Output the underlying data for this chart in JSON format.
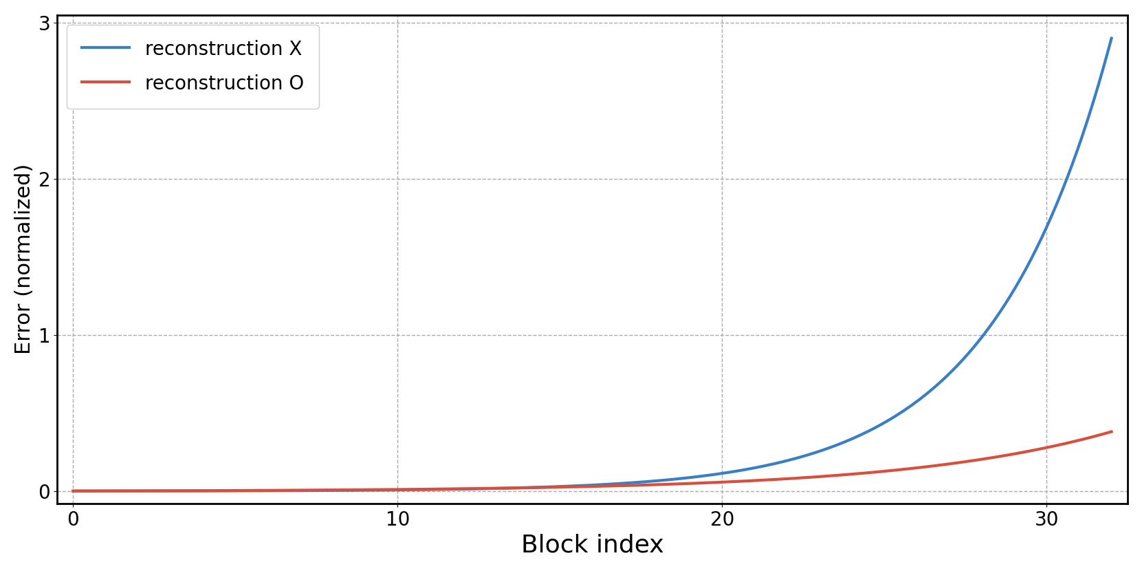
{
  "title": "",
  "xlabel": "Block index",
  "ylabel": "Error (normalized)",
  "xlim": [
    -0.5,
    32.5
  ],
  "ylim": [
    -0.08,
    3.05
  ],
  "yticks": [
    0,
    1,
    2,
    3
  ],
  "xticks": [
    0,
    10,
    20,
    30
  ],
  "blue_label": "reconstruction X",
  "red_label": "reconstruction O",
  "blue_color": "#3a7fc1",
  "red_color": "#d94f3d",
  "n_blocks": 32,
  "blue_k": 0.27,
  "red_k": 0.155,
  "grid_color": "#aaaaaa",
  "grid_style": "--",
  "background_color": "#ffffff",
  "line_width": 3.0,
  "xlabel_fontsize": 26,
  "ylabel_fontsize": 22,
  "tick_fontsize": 20,
  "legend_fontsize": 20
}
